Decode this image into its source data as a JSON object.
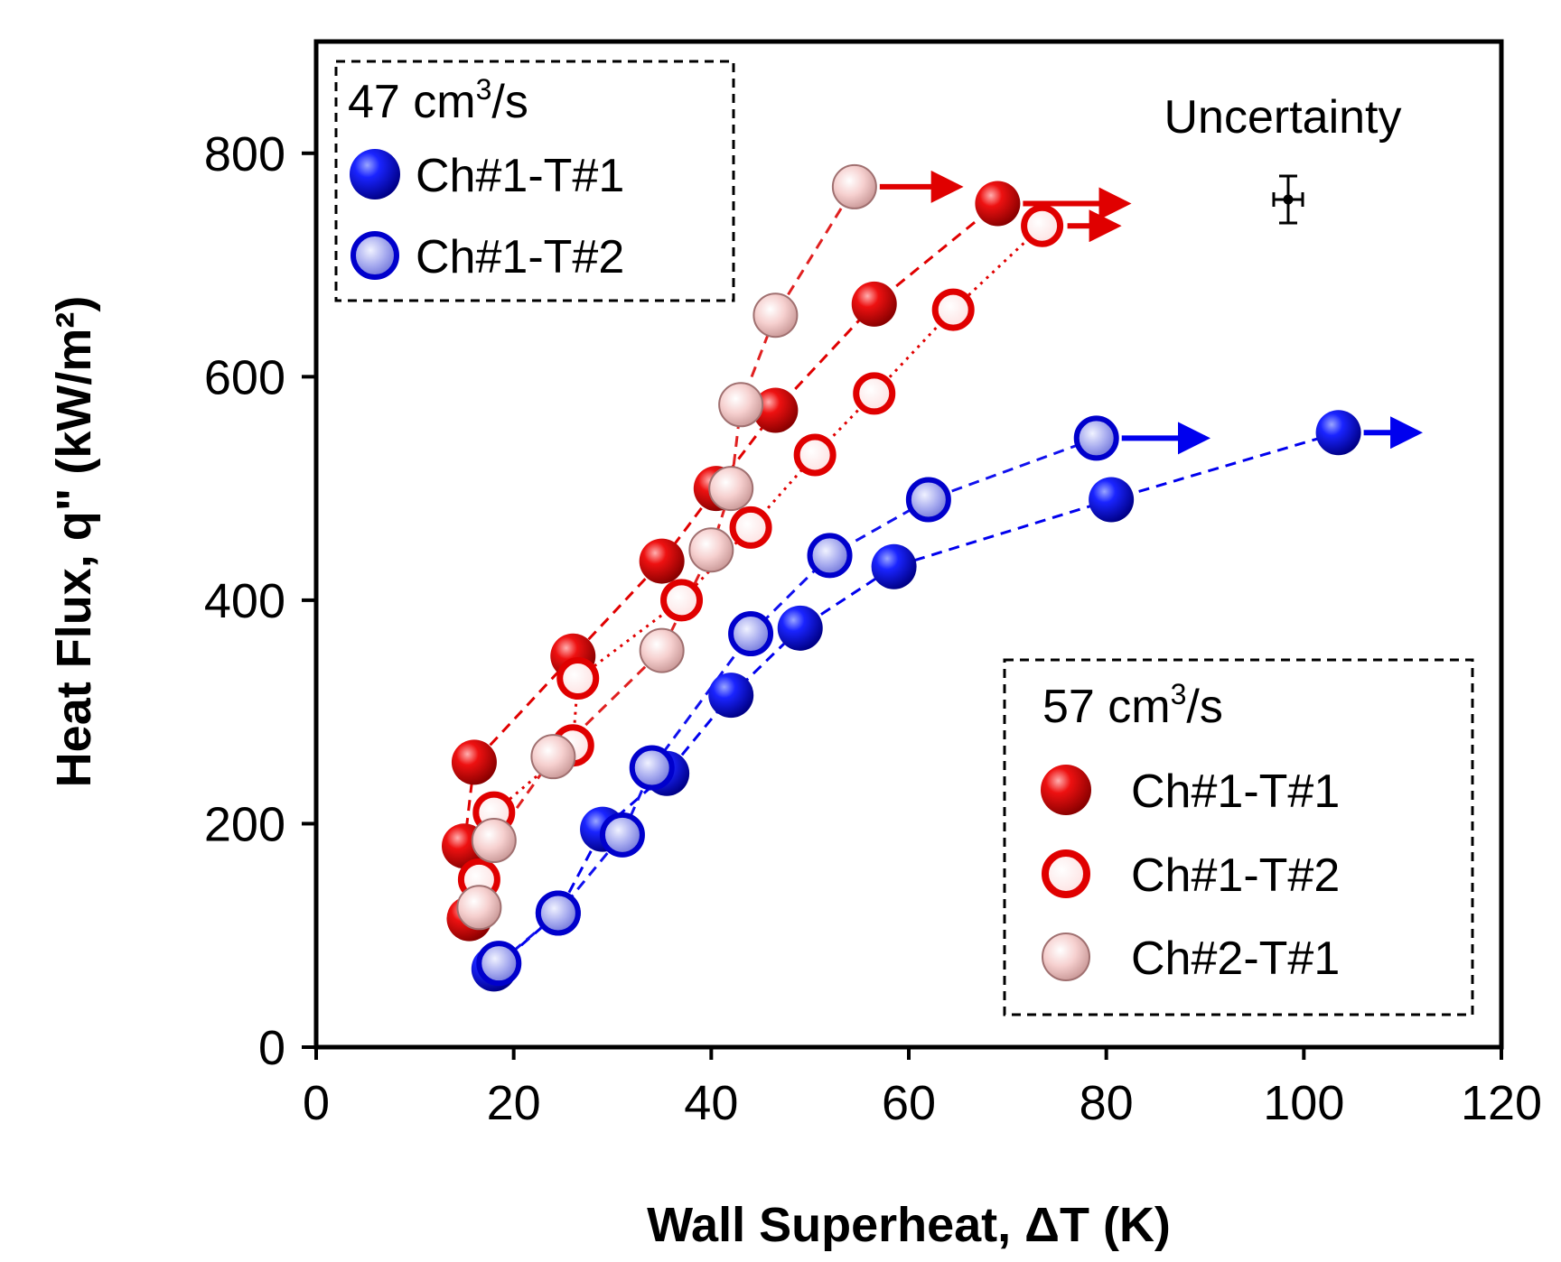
{
  "chart_data": {
    "type": "scatter",
    "xlabel": "Wall Superheat, ΔT (K)",
    "ylabel": "Heat Flux, q\" (kW/m²)",
    "xlim": [
      0,
      120
    ],
    "ylim": [
      0,
      900
    ],
    "xticks": [
      "0",
      "20",
      "40",
      "60",
      "80",
      "100",
      "120"
    ],
    "yticks": [
      "0",
      "200",
      "400",
      "600",
      "800"
    ],
    "grid": false,
    "legends": [
      {
        "title_main": "47 cm",
        "title_sup": "3",
        "title_rest": "/s",
        "placement": "top-left",
        "entries": [
          {
            "label": "Ch#1-T#1",
            "series": "b-47-t1"
          },
          {
            "label": "Ch#1-T#2",
            "series": "b-47-t2"
          }
        ]
      },
      {
        "title_main": "57 cm",
        "title_sup": "3",
        "title_rest": "/s",
        "placement": "bottom-right",
        "entries": [
          {
            "label": "Ch#1-T#1",
            "series": "r-57-t1"
          },
          {
            "label": "Ch#1-T#2",
            "series": "r-57-t2"
          },
          {
            "label": "Ch#2-T#1",
            "series": "p-57-c2"
          }
        ]
      }
    ],
    "series": [
      {
        "id": "b-47-t1",
        "flow": "47 cm3/s",
        "name": "Ch#1-T#1",
        "color": "#0000dd",
        "style": "solid",
        "line": "dashed",
        "x": [
          18,
          24.5,
          29,
          35.5,
          42,
          49,
          58.5,
          80.5,
          103.5
        ],
        "y": [
          70,
          120,
          195,
          245,
          315,
          375,
          430,
          490,
          550
        ],
        "arrow_to_x": 111.5
      },
      {
        "id": "b-47-t2",
        "flow": "47 cm3/s",
        "name": "Ch#1-T#2",
        "color": "#6a6ae0",
        "style": "light",
        "line": "dashed",
        "x": [
          18.5,
          24.5,
          31,
          34,
          44,
          52,
          62,
          79
        ],
        "y": [
          75,
          120,
          190,
          250,
          370,
          440,
          490,
          545
        ],
        "arrow_to_x": 90
      },
      {
        "id": "r-57-t1",
        "flow": "57 cm3/s",
        "name": "Ch#1-T#1",
        "color": "#e00000",
        "style": "solid",
        "line": "dashed",
        "x": [
          15.5,
          15,
          16,
          26,
          35,
          40.5,
          46.5,
          56.5,
          69
        ],
        "y": [
          115,
          180,
          255,
          350,
          435,
          500,
          570,
          665,
          755
        ],
        "arrow_to_x": 82
      },
      {
        "id": "r-57-t2",
        "flow": "57 cm3/s",
        "name": "Ch#1-T#2",
        "color": "#e00000",
        "style": "ring",
        "line": "dotted",
        "x": [
          16.5,
          18,
          26,
          26.5,
          37,
          44,
          50.5,
          56.5,
          64.5,
          73.5
        ],
        "y": [
          150,
          210,
          270,
          330,
          400,
          465,
          530,
          585,
          660,
          735
        ],
        "arrow_to_x": 81
      },
      {
        "id": "p-57-c2",
        "flow": "57 cm3/s",
        "name": "Ch#2-T#1",
        "color": "#c0504d",
        "style": "pale",
        "line": "dashed",
        "x": [
          16.5,
          18,
          24,
          35,
          40,
          42,
          43,
          46.5,
          54.5
        ],
        "y": [
          125,
          185,
          260,
          355,
          445,
          500,
          575,
          655,
          770
        ],
        "arrow_to_x": 65
      }
    ],
    "annotations": [
      {
        "text": "Uncertainty",
        "placement": "top-right"
      }
    ]
  }
}
